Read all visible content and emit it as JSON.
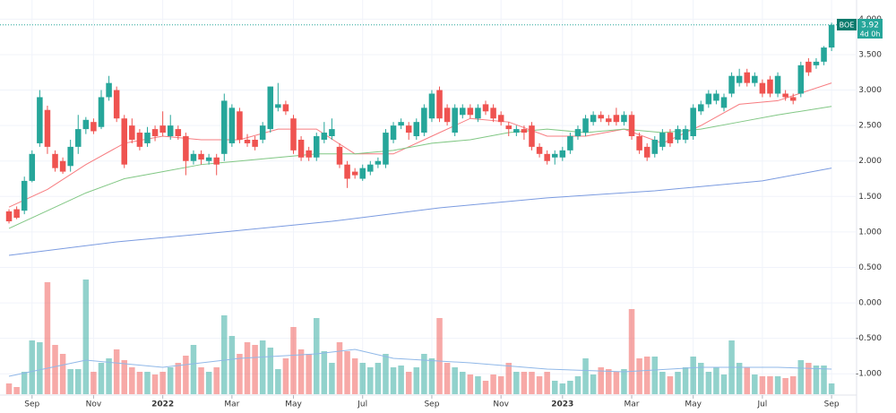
{
  "chart_data": {
    "type": "candlestick",
    "symbol": "BOE",
    "last_price": 3.92,
    "countdown": "4d 0h",
    "up_color": "#26a69a",
    "down_color": "#ef5350",
    "grid": true,
    "xlim": [
      -1.17,
      110.25
    ],
    "xticks": [
      {
        "value": 3,
        "label": "Sep"
      },
      {
        "value": 11,
        "label": "Nov"
      },
      {
        "value": 20,
        "label": "2022"
      },
      {
        "value": 29,
        "label": "Mar"
      },
      {
        "value": 37,
        "label": "May"
      },
      {
        "value": 46,
        "label": "Jul"
      },
      {
        "value": 55,
        "label": "Sep"
      },
      {
        "value": 64,
        "label": "Nov"
      },
      {
        "value": 72,
        "label": "2023"
      },
      {
        "value": 81,
        "label": "Mar"
      },
      {
        "value": 89,
        "label": "May"
      },
      {
        "value": 98,
        "label": "Jul"
      },
      {
        "value": 107,
        "label": "Sep"
      }
    ],
    "ylim": [
      -1.3,
      4.27
    ],
    "yticks": [
      {
        "value": 4,
        "label": "4.000"
      },
      {
        "value": 3.5,
        "label": "3.500"
      },
      {
        "value": 3,
        "label": "3.000"
      },
      {
        "value": 2.5,
        "label": "2.500"
      },
      {
        "value": 2,
        "label": "2.000"
      },
      {
        "value": 1.5,
        "label": "1.500"
      },
      {
        "value": 1,
        "label": "1.000"
      },
      {
        "value": 0.5,
        "label": "0.500"
      },
      {
        "value": 0,
        "label": "0.000"
      },
      {
        "value": -0.5,
        "label": "-0.500"
      },
      {
        "value": -1,
        "label": "-1.000"
      }
    ],
    "candles": [
      [
        1.29,
        1.32,
        1.12,
        1.15
      ],
      [
        1.32,
        1.36,
        1.18,
        1.2
      ],
      [
        1.3,
        1.78,
        1.25,
        1.72
      ],
      [
        1.72,
        2.15,
        1.7,
        2.1
      ],
      [
        2.25,
        3.0,
        2.2,
        2.9
      ],
      [
        2.72,
        2.78,
        2.1,
        2.2
      ],
      [
        2.1,
        2.15,
        1.85,
        1.9
      ],
      [
        2.0,
        2.05,
        1.82,
        1.85
      ],
      [
        1.93,
        2.3,
        1.85,
        2.2
      ],
      [
        2.2,
        2.65,
        2.1,
        2.45
      ],
      [
        2.45,
        2.62,
        2.38,
        2.58
      ],
      [
        2.55,
        2.6,
        2.38,
        2.42
      ],
      [
        2.48,
        3.0,
        2.45,
        2.9
      ],
      [
        2.9,
        3.2,
        2.85,
        3.1
      ],
      [
        3.0,
        3.05,
        2.55,
        2.6
      ],
      [
        2.6,
        2.65,
        1.9,
        1.95
      ],
      [
        2.5,
        2.6,
        2.25,
        2.3
      ],
      [
        2.4,
        2.45,
        2.15,
        2.2
      ],
      [
        2.25,
        2.48,
        2.2,
        2.4
      ],
      [
        2.45,
        2.5,
        2.28,
        2.35
      ],
      [
        2.5,
        2.7,
        2.35,
        2.4
      ],
      [
        2.35,
        2.65,
        2.3,
        2.5
      ],
      [
        2.45,
        2.5,
        2.3,
        2.35
      ],
      [
        2.35,
        2.4,
        1.8,
        2.0
      ],
      [
        2.0,
        2.15,
        1.95,
        2.1
      ],
      [
        2.1,
        2.15,
        1.95,
        2.02
      ],
      [
        2.0,
        2.1,
        1.95,
        2.05
      ],
      [
        2.05,
        2.1,
        1.8,
        1.95
      ],
      [
        2.1,
        2.95,
        2.0,
        2.85
      ],
      [
        2.25,
        2.8,
        2.2,
        2.75
      ],
      [
        2.7,
        2.75,
        2.25,
        2.3
      ],
      [
        2.3,
        2.38,
        2.2,
        2.25
      ],
      [
        2.3,
        2.35,
        2.15,
        2.2
      ],
      [
        2.3,
        2.55,
        2.25,
        2.5
      ],
      [
        2.45,
        3.05,
        2.4,
        3.05
      ],
      [
        2.75,
        3.1,
        2.7,
        2.8
      ],
      [
        2.8,
        2.85,
        2.65,
        2.7
      ],
      [
        2.6,
        2.65,
        2.1,
        2.15
      ],
      [
        2.3,
        2.35,
        2.0,
        2.05
      ],
      [
        2.15,
        2.2,
        2.0,
        2.05
      ],
      [
        2.05,
        2.4,
        2.0,
        2.35
      ],
      [
        2.3,
        2.55,
        2.25,
        2.4
      ],
      [
        2.35,
        2.6,
        2.3,
        2.45
      ],
      [
        2.2,
        2.25,
        1.9,
        1.95
      ],
      [
        1.95,
        2.0,
        1.62,
        1.75
      ],
      [
        1.85,
        1.9,
        1.75,
        1.8
      ],
      [
        1.75,
        1.95,
        1.72,
        1.9
      ],
      [
        1.85,
        2.0,
        1.8,
        1.95
      ],
      [
        1.95,
        2.05,
        1.9,
        2.0
      ],
      [
        1.95,
        2.45,
        1.9,
        2.4
      ],
      [
        2.3,
        2.55,
        2.25,
        2.5
      ],
      [
        2.5,
        2.6,
        2.45,
        2.55
      ],
      [
        2.5,
        2.55,
        2.3,
        2.4
      ],
      [
        2.35,
        2.6,
        2.3,
        2.55
      ],
      [
        2.4,
        2.8,
        2.35,
        2.75
      ],
      [
        2.6,
        3.0,
        2.55,
        2.95
      ],
      [
        3.0,
        3.05,
        2.55,
        2.6
      ],
      [
        2.75,
        2.8,
        2.5,
        2.55
      ],
      [
        2.4,
        2.8,
        2.35,
        2.75
      ],
      [
        2.65,
        2.8,
        2.6,
        2.75
      ],
      [
        2.75,
        2.8,
        2.6,
        2.65
      ],
      [
        2.6,
        2.8,
        2.55,
        2.75
      ],
      [
        2.8,
        2.85,
        2.65,
        2.7
      ],
      [
        2.75,
        2.8,
        2.55,
        2.6
      ],
      [
        2.65,
        2.7,
        2.5,
        2.55
      ],
      [
        2.5,
        2.55,
        2.35,
        2.45
      ],
      [
        2.4,
        2.5,
        2.35,
        2.45
      ],
      [
        2.45,
        2.5,
        2.3,
        2.4
      ],
      [
        2.5,
        2.55,
        2.15,
        2.2
      ],
      [
        2.2,
        2.25,
        2.05,
        2.1
      ],
      [
        2.1,
        2.15,
        1.95,
        2.0
      ],
      [
        2.05,
        2.15,
        1.95,
        2.1
      ],
      [
        2.05,
        2.2,
        2.0,
        2.15
      ],
      [
        2.15,
        2.4,
        2.1,
        2.35
      ],
      [
        2.35,
        2.5,
        2.3,
        2.45
      ],
      [
        2.4,
        2.65,
        2.35,
        2.6
      ],
      [
        2.55,
        2.7,
        2.5,
        2.65
      ],
      [
        2.65,
        2.7,
        2.55,
        2.6
      ],
      [
        2.6,
        2.65,
        2.5,
        2.55
      ],
      [
        2.65,
        2.75,
        2.5,
        2.55
      ],
      [
        2.55,
        2.7,
        2.5,
        2.65
      ],
      [
        2.65,
        2.7,
        2.3,
        2.35
      ],
      [
        2.35,
        2.4,
        2.1,
        2.15
      ],
      [
        2.2,
        2.25,
        2.0,
        2.05
      ],
      [
        2.1,
        2.35,
        2.05,
        2.3
      ],
      [
        2.2,
        2.45,
        2.15,
        2.4
      ],
      [
        2.4,
        2.45,
        2.2,
        2.25
      ],
      [
        2.3,
        2.5,
        2.25,
        2.45
      ],
      [
        2.3,
        2.5,
        2.25,
        2.45
      ],
      [
        2.35,
        2.8,
        2.3,
        2.75
      ],
      [
        2.7,
        2.85,
        2.65,
        2.8
      ],
      [
        2.8,
        3.0,
        2.75,
        2.95
      ],
      [
        2.85,
        3.0,
        2.8,
        2.95
      ],
      [
        2.75,
        2.95,
        2.7,
        2.9
      ],
      [
        2.95,
        3.25,
        2.9,
        3.2
      ],
      [
        3.1,
        3.3,
        3.05,
        3.2
      ],
      [
        3.25,
        3.3,
        3.05,
        3.1
      ],
      [
        3.1,
        3.25,
        3.05,
        3.2
      ],
      [
        3.1,
        3.15,
        2.9,
        2.95
      ],
      [
        3.15,
        3.2,
        2.9,
        2.95
      ],
      [
        2.95,
        3.25,
        2.9,
        3.2
      ],
      [
        2.95,
        3.0,
        2.85,
        2.9
      ],
      [
        2.9,
        2.95,
        2.8,
        2.85
      ],
      [
        2.95,
        3.4,
        2.9,
        3.35
      ],
      [
        3.4,
        3.45,
        3.2,
        3.25
      ],
      [
        3.35,
        3.45,
        3.3,
        3.4
      ],
      [
        3.4,
        3.62,
        3.35,
        3.6
      ],
      [
        3.6,
        3.95,
        3.55,
        3.92
      ]
    ],
    "volume_ylim": [
      0,
      130
    ],
    "volume": [
      12,
      8,
      25,
      60,
      58,
      125,
      55,
      45,
      28,
      28,
      128,
      25,
      35,
      40,
      50,
      38,
      30,
      25,
      25,
      22,
      25,
      30,
      35,
      43,
      55,
      30,
      25,
      30,
      88,
      65,
      45,
      58,
      55,
      60,
      52,
      28,
      40,
      75,
      50,
      45,
      85,
      48,
      35,
      58,
      48,
      40,
      35,
      30,
      35,
      45,
      30,
      32,
      25,
      30,
      45,
      40,
      85,
      35,
      30,
      25,
      22,
      20,
      15,
      22,
      20,
      35,
      25,
      25,
      25,
      20,
      25,
      15,
      12,
      15,
      20,
      40,
      22,
      30,
      28,
      25,
      28,
      95,
      40,
      42,
      42,
      25,
      20,
      25,
      30,
      42,
      35,
      25,
      30,
      22,
      60,
      35,
      30,
      22,
      20,
      20,
      20,
      18,
      20,
      38,
      35,
      32,
      32,
      12
    ],
    "moving_averages": [
      {
        "color": "#f77c80",
        "x": [
          0,
          5,
          10,
          15,
          20,
          25,
          30,
          35,
          40,
          45,
          50,
          55,
          60,
          65,
          70,
          75,
          80,
          85,
          90,
          95,
          100,
          107
        ],
        "values": [
          1.35,
          1.6,
          1.95,
          2.25,
          2.35,
          2.3,
          2.3,
          2.45,
          2.45,
          2.1,
          2.1,
          2.35,
          2.6,
          2.55,
          2.35,
          2.35,
          2.45,
          2.25,
          2.5,
          2.8,
          2.85,
          3.1
        ]
      },
      {
        "color": "#81c784",
        "x": [
          0,
          5,
          10,
          15,
          20,
          25,
          30,
          35,
          40,
          45,
          50,
          55,
          60,
          65,
          70,
          75,
          80,
          85,
          90,
          95,
          100,
          107
        ],
        "values": [
          1.05,
          1.3,
          1.55,
          1.75,
          1.85,
          1.95,
          2.0,
          2.05,
          2.1,
          2.1,
          2.15,
          2.25,
          2.3,
          2.4,
          2.45,
          2.4,
          2.45,
          2.4,
          2.45,
          2.55,
          2.65,
          2.77
        ]
      },
      {
        "color": "#7b9be0",
        "x": [
          0,
          14,
          28,
          42,
          56,
          70,
          84,
          98,
          107
        ],
        "values": [
          0.67,
          0.86,
          1.0,
          1.15,
          1.34,
          1.48,
          1.58,
          1.72,
          1.9
        ]
      }
    ],
    "volume_average": {
      "color": "#90b8e8",
      "x": [
        0,
        10,
        20,
        30,
        40,
        45,
        50,
        60,
        70,
        80,
        90,
        100,
        107
      ],
      "values": [
        20,
        38,
        30,
        40,
        45,
        50,
        40,
        35,
        28,
        25,
        30,
        30,
        28
      ]
    }
  }
}
